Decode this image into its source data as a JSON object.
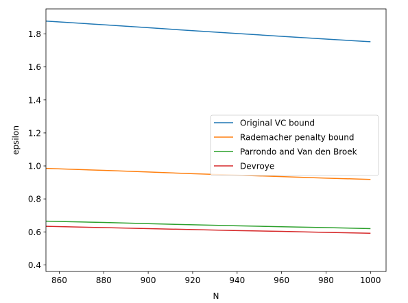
{
  "chart_data": {
    "type": "line",
    "title": "",
    "xlabel": "N",
    "ylabel": "epsilon",
    "xlim": [
      854,
      1007
    ],
    "ylim": [
      0.36,
      1.952
    ],
    "xticks": [
      860,
      880,
      900,
      920,
      940,
      960,
      980,
      1000
    ],
    "yticks": [
      0.4,
      0.6,
      0.8,
      1.0,
      1.2,
      1.4,
      1.6,
      1.8
    ],
    "xtick_labels": [
      "860",
      "880",
      "900",
      "920",
      "940",
      "960",
      "980",
      "1000"
    ],
    "ytick_labels": [
      "0.4",
      "0.6",
      "0.8",
      "1.0",
      "1.2",
      "1.4",
      "1.6",
      "1.8"
    ],
    "grid": false,
    "legend_position": "center-right",
    "x": [
      854,
      880,
      900,
      920,
      940,
      960,
      980,
      1000
    ],
    "series": [
      {
        "name": "Original VC bound",
        "color": "#1f77b4",
        "values": [
          1.878,
          1.856,
          1.838,
          1.82,
          1.803,
          1.786,
          1.769,
          1.753
        ]
      },
      {
        "name": "Rademacher penalty bound",
        "color": "#ff7f0e",
        "values": [
          0.985,
          0.973,
          0.963,
          0.953,
          0.944,
          0.935,
          0.926,
          0.918
        ]
      },
      {
        "name": "Parrondo and Van den Broek",
        "color": "#2ca02c",
        "values": [
          0.665,
          0.657,
          0.65,
          0.643,
          0.637,
          0.631,
          0.626,
          0.62
        ]
      },
      {
        "name": "Devroye",
        "color": "#d62728",
        "values": [
          0.634,
          0.626,
          0.62,
          0.614,
          0.608,
          0.603,
          0.597,
          0.592
        ]
      }
    ]
  }
}
